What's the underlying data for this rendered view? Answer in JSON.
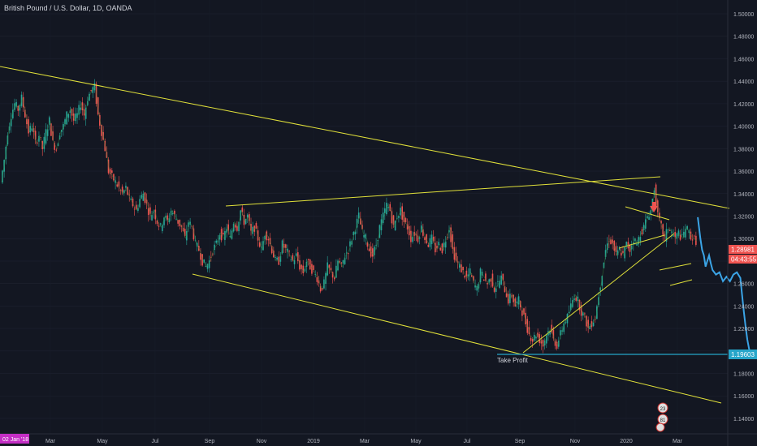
{
  "header": {
    "title": "British Pound / U.S. Dollar, 1D, OANDA"
  },
  "chart_data": {
    "type": "candlestick",
    "title": "British Pound / U.S. Dollar, 1D, OANDA",
    "ylim": [
      1.13,
      1.51
    ],
    "y_ticks": [
      "1.50000",
      "1.48000",
      "1.46000",
      "1.44000",
      "1.42000",
      "1.40000",
      "1.38000",
      "1.36000",
      "1.34000",
      "1.32000",
      "1.30000",
      "1.28000",
      "1.26000",
      "1.24000",
      "1.22000",
      "1.20000",
      "1.18000",
      "1.16000",
      "1.14000"
    ],
    "x_ticks": [
      "Mar",
      "May",
      "Jul",
      "Sep",
      "Nov",
      "2019",
      "Mar",
      "May",
      "Jul",
      "Sep",
      "Nov",
      "2020",
      "Mar"
    ],
    "x_start_label": "02 Jan '18",
    "current_price": "1.28981",
    "countdown": "04:43:55",
    "take_profit_price": "1.19603",
    "take_profit_label": "Take Profit",
    "badges": [
      "23",
      "81"
    ],
    "price_path": [
      [
        0,
        1.35
      ],
      [
        4,
        1.37
      ],
      [
        8,
        1.395
      ],
      [
        12,
        1.41
      ],
      [
        16,
        1.42
      ],
      [
        20,
        1.415
      ],
      [
        24,
        1.425
      ],
      [
        28,
        1.41
      ],
      [
        32,
        1.395
      ],
      [
        36,
        1.4
      ],
      [
        40,
        1.385
      ],
      [
        44,
        1.392
      ],
      [
        48,
        1.38
      ],
      [
        52,
        1.395
      ],
      [
        56,
        1.405
      ],
      [
        60,
        1.385
      ],
      [
        64,
        1.38
      ],
      [
        68,
        1.395
      ],
      [
        72,
        1.4
      ],
      [
        76,
        1.41
      ],
      [
        80,
        1.415
      ],
      [
        84,
        1.405
      ],
      [
        88,
        1.41
      ],
      [
        92,
        1.42
      ],
      [
        96,
        1.41
      ],
      [
        100,
        1.425
      ],
      [
        104,
        1.432
      ],
      [
        108,
        1.435
      ],
      [
        112,
        1.41
      ],
      [
        116,
        1.395
      ],
      [
        120,
        1.38
      ],
      [
        124,
        1.36
      ],
      [
        128,
        1.355
      ],
      [
        132,
        1.35
      ],
      [
        136,
        1.345
      ],
      [
        140,
        1.34
      ],
      [
        144,
        1.345
      ],
      [
        148,
        1.335
      ],
      [
        152,
        1.33
      ],
      [
        156,
        1.325
      ],
      [
        160,
        1.335
      ],
      [
        164,
        1.34
      ],
      [
        168,
        1.33
      ],
      [
        172,
        1.32
      ],
      [
        176,
        1.325
      ],
      [
        180,
        1.315
      ],
      [
        184,
        1.31
      ],
      [
        188,
        1.32
      ],
      [
        192,
        1.315
      ],
      [
        196,
        1.325
      ],
      [
        200,
        1.32
      ],
      [
        204,
        1.315
      ],
      [
        208,
        1.31
      ],
      [
        212,
        1.3
      ],
      [
        216,
        1.315
      ],
      [
        220,
        1.31
      ],
      [
        224,
        1.295
      ],
      [
        228,
        1.29
      ],
      [
        232,
        1.28
      ],
      [
        236,
        1.275
      ],
      [
        240,
        1.28
      ],
      [
        244,
        1.29
      ],
      [
        248,
        1.295
      ],
      [
        252,
        1.305
      ],
      [
        256,
        1.3
      ],
      [
        260,
        1.31
      ],
      [
        264,
        1.3
      ],
      [
        268,
        1.315
      ],
      [
        272,
        1.31
      ],
      [
        276,
        1.325
      ],
      [
        280,
        1.315
      ],
      [
        284,
        1.32
      ],
      [
        288,
        1.305
      ],
      [
        292,
        1.31
      ],
      [
        296,
        1.3
      ],
      [
        300,
        1.29
      ],
      [
        304,
        1.305
      ],
      [
        308,
        1.3
      ],
      [
        312,
        1.29
      ],
      [
        316,
        1.28
      ],
      [
        320,
        1.28
      ],
      [
        324,
        1.295
      ],
      [
        328,
        1.29
      ],
      [
        332,
        1.285
      ],
      [
        336,
        1.28
      ],
      [
        340,
        1.285
      ],
      [
        344,
        1.275
      ],
      [
        348,
        1.27
      ],
      [
        352,
        1.28
      ],
      [
        356,
        1.275
      ],
      [
        360,
        1.27
      ],
      [
        364,
        1.265
      ],
      [
        368,
        1.255
      ],
      [
        372,
        1.26
      ],
      [
        376,
        1.275
      ],
      [
        380,
        1.27
      ],
      [
        384,
        1.265
      ],
      [
        388,
        1.28
      ],
      [
        392,
        1.275
      ],
      [
        396,
        1.285
      ],
      [
        400,
        1.29
      ],
      [
        404,
        1.3
      ],
      [
        408,
        1.31
      ],
      [
        412,
        1.32
      ],
      [
        416,
        1.305
      ],
      [
        420,
        1.3
      ],
      [
        424,
        1.29
      ],
      [
        428,
        1.285
      ],
      [
        432,
        1.295
      ],
      [
        436,
        1.31
      ],
      [
        440,
        1.32
      ],
      [
        444,
        1.33
      ],
      [
        448,
        1.325
      ],
      [
        452,
        1.31
      ],
      [
        456,
        1.32
      ],
      [
        460,
        1.325
      ],
      [
        464,
        1.315
      ],
      [
        468,
        1.31
      ],
      [
        472,
        1.3
      ],
      [
        476,
        1.305
      ],
      [
        480,
        1.3
      ],
      [
        484,
        1.31
      ],
      [
        488,
        1.3
      ],
      [
        492,
        1.295
      ],
      [
        496,
        1.3
      ],
      [
        500,
        1.29
      ],
      [
        504,
        1.295
      ],
      [
        508,
        1.29
      ],
      [
        512,
        1.3
      ],
      [
        516,
        1.31
      ],
      [
        520,
        1.29
      ],
      [
        524,
        1.28
      ],
      [
        528,
        1.275
      ],
      [
        532,
        1.27
      ],
      [
        536,
        1.265
      ],
      [
        540,
        1.27
      ],
      [
        544,
        1.26
      ],
      [
        548,
        1.255
      ],
      [
        552,
        1.27
      ],
      [
        556,
        1.265
      ],
      [
        560,
        1.26
      ],
      [
        564,
        1.265
      ],
      [
        568,
        1.255
      ],
      [
        572,
        1.26
      ],
      [
        576,
        1.265
      ],
      [
        580,
        1.255
      ],
      [
        584,
        1.245
      ],
      [
        588,
        1.25
      ],
      [
        592,
        1.24
      ],
      [
        596,
        1.245
      ],
      [
        600,
        1.235
      ],
      [
        604,
        1.225
      ],
      [
        608,
        1.215
      ],
      [
        612,
        1.21
      ],
      [
        616,
        1.215
      ],
      [
        620,
        1.21
      ],
      [
        624,
        1.205
      ],
      [
        628,
        1.215
      ],
      [
        632,
        1.22
      ],
      [
        636,
        1.21
      ],
      [
        640,
        1.205
      ],
      [
        644,
        1.215
      ],
      [
        648,
        1.225
      ],
      [
        652,
        1.23
      ],
      [
        656,
        1.24
      ],
      [
        660,
        1.25
      ],
      [
        664,
        1.245
      ],
      [
        668,
        1.235
      ],
      [
        672,
        1.23
      ],
      [
        676,
        1.22
      ],
      [
        680,
        1.225
      ],
      [
        684,
        1.23
      ],
      [
        688,
        1.25
      ],
      [
        692,
        1.27
      ],
      [
        696,
        1.29
      ],
      [
        700,
        1.3
      ],
      [
        704,
        1.295
      ],
      [
        708,
        1.285
      ],
      [
        712,
        1.29
      ],
      [
        716,
        1.285
      ],
      [
        720,
        1.295
      ],
      [
        724,
        1.29
      ],
      [
        728,
        1.3
      ],
      [
        732,
        1.295
      ],
      [
        736,
        1.305
      ],
      [
        740,
        1.31
      ],
      [
        744,
        1.32
      ],
      [
        748,
        1.325
      ],
      [
        752,
        1.345
      ],
      [
        756,
        1.32
      ],
      [
        760,
        1.31
      ],
      [
        764,
        1.3
      ],
      [
        768,
        1.31
      ],
      [
        772,
        1.305
      ],
      [
        776,
        1.3
      ],
      [
        780,
        1.305
      ],
      [
        784,
        1.3
      ],
      [
        788,
        1.31
      ],
      [
        792,
        1.305
      ],
      [
        796,
        1.3
      ],
      [
        800,
        1.298
      ]
    ],
    "projection_path": [
      [
        801,
        1.319
      ],
      [
        804,
        1.3
      ],
      [
        806,
        1.29
      ],
      [
        808,
        1.285
      ],
      [
        810,
        1.275
      ],
      [
        812,
        1.28
      ],
      [
        814,
        1.285
      ],
      [
        816,
        1.278
      ],
      [
        818,
        1.272
      ],
      [
        822,
        1.268
      ],
      [
        826,
        1.27
      ],
      [
        830,
        1.262
      ],
      [
        834,
        1.266
      ],
      [
        838,
        1.262
      ],
      [
        842,
        1.268
      ],
      [
        846,
        1.27
      ],
      [
        850,
        1.265
      ],
      [
        852,
        1.25
      ],
      [
        854,
        1.235
      ],
      [
        856,
        1.222
      ],
      [
        858,
        1.21
      ],
      [
        860,
        1.202
      ],
      [
        862,
        1.197
      ]
    ]
  }
}
